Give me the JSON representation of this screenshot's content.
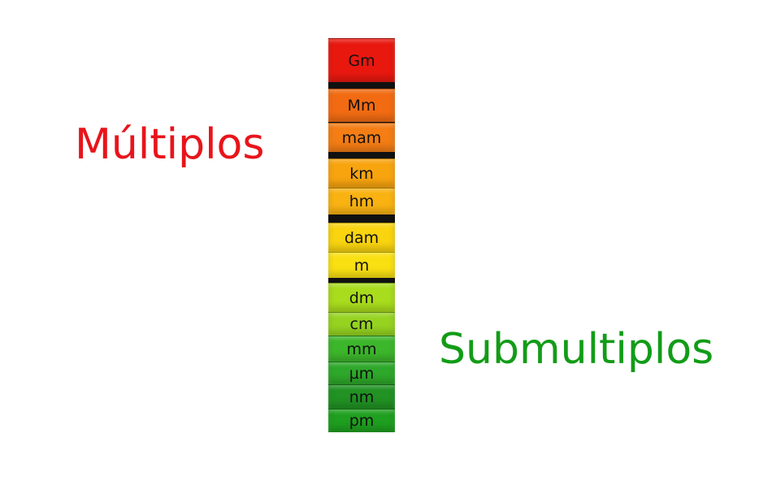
{
  "labels": {
    "multiplos": "Múltiplos",
    "submultiplos": "Submultiplos"
  },
  "colors": {
    "multiplos_text": "#e8141b",
    "submultiplos_text": "#129c17"
  },
  "units": [
    {
      "label": "Gm",
      "color": "#e8180f"
    },
    {
      "label": "Mm",
      "color": "#f26b12"
    },
    {
      "label": "mam",
      "color": "#f47d14"
    },
    {
      "label": "km",
      "color": "#f8a40f"
    },
    {
      "label": "hm",
      "color": "#f9b212"
    },
    {
      "label": "dam",
      "color": "#f9d40f"
    },
    {
      "label": "m",
      "color": "#f9e012"
    },
    {
      "label": "dm",
      "color": "#a8dc1d"
    },
    {
      "label": "cm",
      "color": "#96d321"
    },
    {
      "label": "mm",
      "color": "#3cb62b"
    },
    {
      "label": "µm",
      "color": "#2ea82a"
    },
    {
      "label": "nm",
      "color": "#219223"
    },
    {
      "label": "pm",
      "color": "#1f9f1f"
    }
  ]
}
